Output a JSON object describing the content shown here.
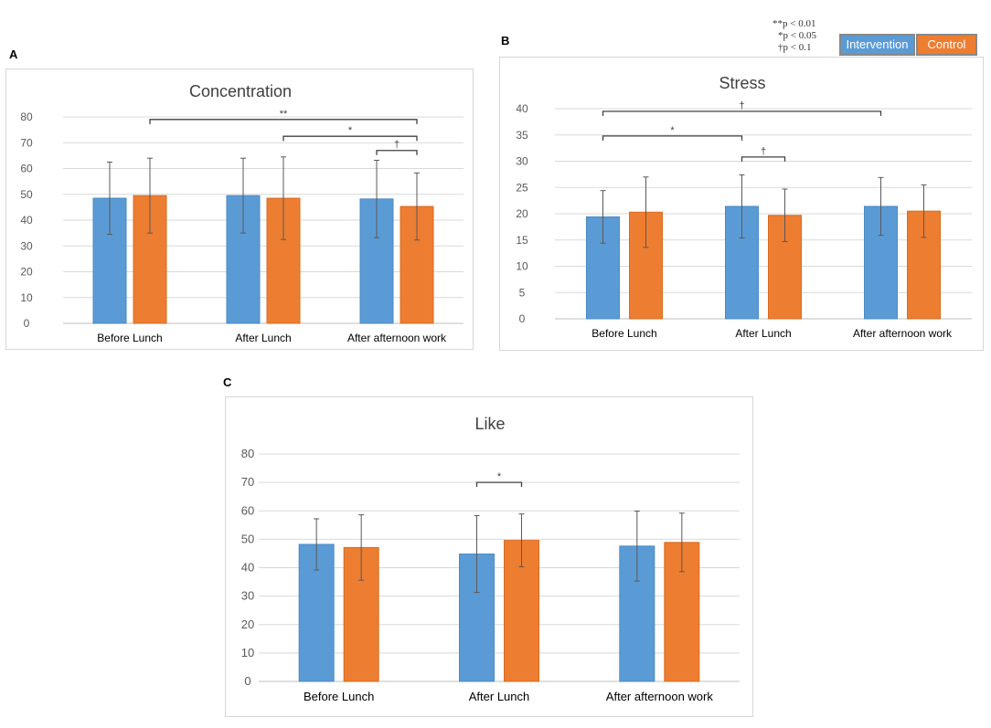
{
  "colors": {
    "intervention": "#5b9bd5",
    "control": "#ed7d31",
    "grid": "#d9d9d9",
    "axis_text": "#595959",
    "bracket": "#404040"
  },
  "legend": {
    "notes": [
      "**p < 0.01",
      "*p < 0.05",
      "†p < 0.1"
    ],
    "series": [
      "Intervention",
      "Control"
    ]
  },
  "panels": [
    {
      "letter": "A"
    },
    {
      "letter": "B"
    },
    {
      "letter": "C"
    }
  ],
  "chart_data": [
    {
      "type": "bar",
      "title": "Concentration",
      "categories": [
        "Before Lunch",
        "After Lunch",
        "After afternoon work"
      ],
      "series": [
        {
          "name": "Intervention",
          "values": [
            48.5,
            49.5,
            48.2
          ],
          "errors": [
            14,
            14.5,
            15
          ]
        },
        {
          "name": "Control",
          "values": [
            49.5,
            48.5,
            45.3
          ],
          "errors": [
            14.5,
            16,
            13
          ]
        }
      ],
      "ylim": [
        0,
        80
      ],
      "yticks": [
        0,
        10,
        20,
        30,
        40,
        50,
        60,
        70,
        80
      ],
      "xlabel": "",
      "ylabel": "",
      "annotations": [
        {
          "label": "**",
          "from": [
            0,
            1
          ],
          "to": [
            2,
            1
          ],
          "y": 79
        },
        {
          "label": "*",
          "from": [
            1,
            1
          ],
          "to": [
            2,
            1
          ],
          "y": 72.5
        },
        {
          "label": "†",
          "from": [
            2,
            0
          ],
          "to": [
            2,
            1
          ],
          "y": 67
        }
      ]
    },
    {
      "type": "bar",
      "title": "Stress",
      "categories": [
        "Before Lunch",
        "After Lunch",
        "After afternoon work"
      ],
      "series": [
        {
          "name": "Intervention",
          "values": [
            19.4,
            21.4,
            21.4
          ],
          "errors": [
            5,
            6,
            5.5
          ]
        },
        {
          "name": "Control",
          "values": [
            20.3,
            19.7,
            20.5
          ],
          "errors": [
            6.7,
            5,
            5
          ]
        }
      ],
      "ylim": [
        0,
        40
      ],
      "yticks": [
        0,
        5,
        10,
        15,
        20,
        25,
        30,
        35,
        40
      ],
      "xlabel": "",
      "ylabel": "",
      "annotations": [
        {
          "label": "†",
          "from": [
            0,
            0
          ],
          "to": [
            2,
            0
          ],
          "y": 39.5
        },
        {
          "label": "*",
          "from": [
            0,
            0
          ],
          "to": [
            1,
            0
          ],
          "y": 34.8
        },
        {
          "label": "†",
          "from": [
            1,
            0
          ],
          "to": [
            1,
            1
          ],
          "y": 30.8
        }
      ]
    },
    {
      "type": "bar",
      "title": "Like",
      "categories": [
        "Before Lunch",
        "After Lunch",
        "After afternoon work"
      ],
      "series": [
        {
          "name": "Intervention",
          "values": [
            48.2,
            44.8,
            47.6
          ],
          "errors": [
            9,
            13.5,
            12.3
          ]
        },
        {
          "name": "Control",
          "values": [
            47.1,
            49.6,
            48.9
          ],
          "errors": [
            11.5,
            9.3,
            10.3
          ]
        }
      ],
      "ylim": [
        0,
        80
      ],
      "yticks": [
        0,
        10,
        20,
        30,
        40,
        50,
        60,
        70,
        80
      ],
      "xlabel": "",
      "ylabel": "",
      "annotations": [
        {
          "label": "*",
          "from": [
            1,
            0
          ],
          "to": [
            1,
            1
          ],
          "y": 70
        }
      ]
    }
  ]
}
